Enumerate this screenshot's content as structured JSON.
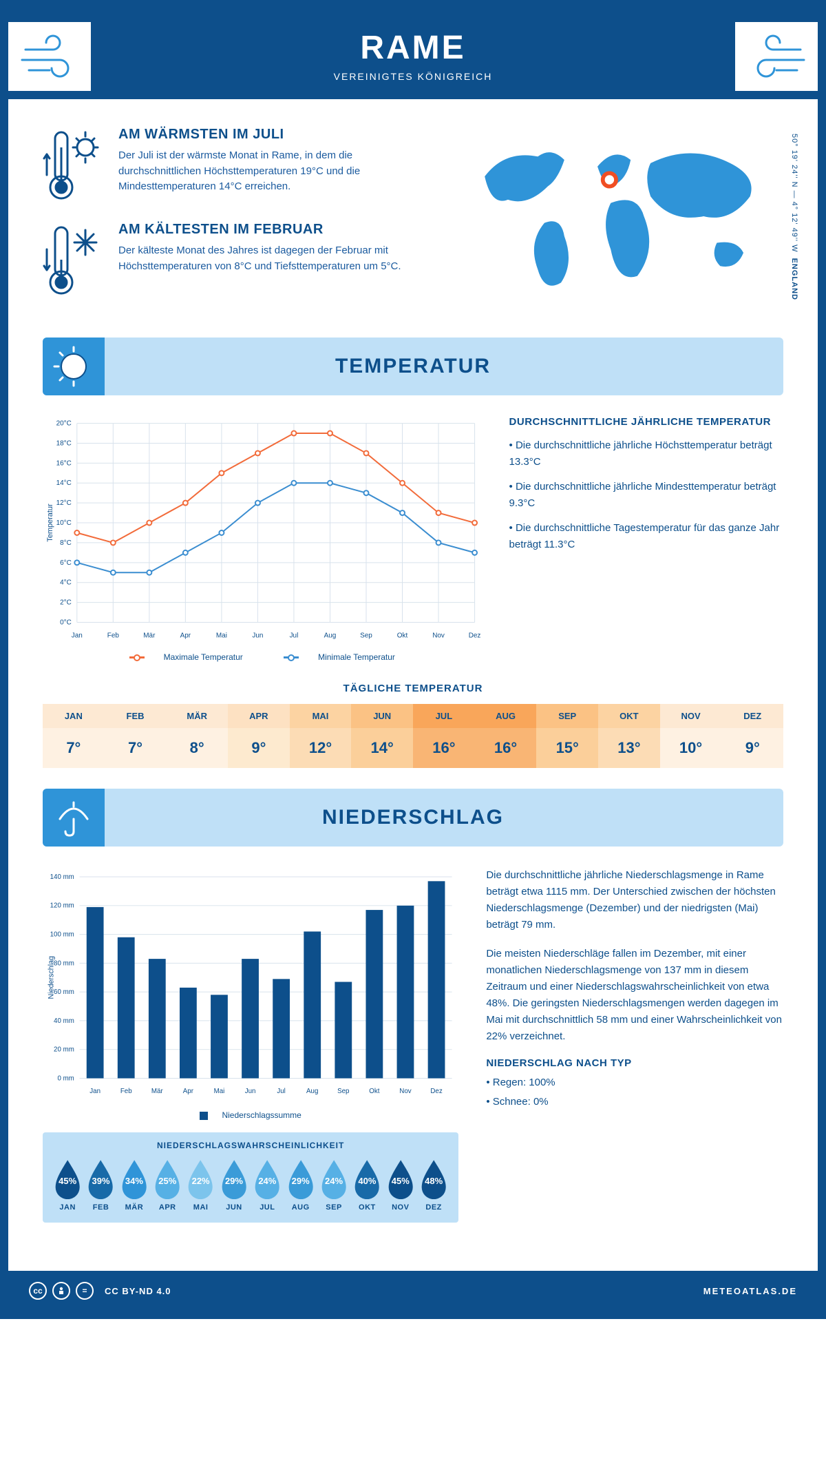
{
  "header": {
    "title": "RAME",
    "subtitle": "VEREINIGTES KÖNIGREICH"
  },
  "colors": {
    "primary": "#0d4f8b",
    "light_blue": "#bfe0f7",
    "mid_blue": "#2f94d8",
    "accent_blue": "#1a5a9e",
    "max_line": "#f26b3a",
    "min_line": "#3a8dd0",
    "grid": "#d0d8e0"
  },
  "coords": {
    "line1": "50° 19' 24'' N — 4° 12' 49'' W",
    "line2": "ENGLAND"
  },
  "warmest": {
    "title": "AM WÄRMSTEN IM JULI",
    "text": "Der Juli ist der wärmste Monat in Rame, in dem die durchschnittlichen Höchsttemperaturen 19°C und die Mindesttemperaturen 14°C erreichen."
  },
  "coldest": {
    "title": "AM KÄLTESTEN IM FEBRUAR",
    "text": "Der kälteste Monat des Jahres ist dagegen der Februar mit Höchsttemperaturen von 8°C und Tiefsttemperaturen um 5°C."
  },
  "temperature": {
    "section_title": "TEMPERATUR",
    "chart": {
      "type": "line",
      "months": [
        "Jan",
        "Feb",
        "Mär",
        "Apr",
        "Mai",
        "Jun",
        "Jul",
        "Aug",
        "Sep",
        "Okt",
        "Nov",
        "Dez"
      ],
      "max_values": [
        9,
        8,
        10,
        12,
        15,
        17,
        19,
        19,
        17,
        14,
        11,
        10
      ],
      "min_values": [
        6,
        5,
        5,
        7,
        9,
        12,
        14,
        14,
        13,
        11,
        8,
        7
      ],
      "ylim": [
        0,
        20
      ],
      "ytick_step": 2,
      "y_label": "Temperatur",
      "legend_max": "Maximale Temperatur",
      "legend_min": "Minimale Temperatur",
      "max_color": "#f26b3a",
      "min_color": "#3a8dd0",
      "grid_color": "#d8e2ec",
      "line_width": 2,
      "marker": "circle-open"
    },
    "side": {
      "title": "DURCHSCHNITTLICHE JÄHRLICHE TEMPERATUR",
      "b1": "• Die durchschnittliche jährliche Höchsttemperatur beträgt 13.3°C",
      "b2": "• Die durchschnittliche jährliche Mindesttemperatur beträgt 9.3°C",
      "b3": "• Die durchschnittliche Tagestemperatur für das ganze Jahr beträgt 11.3°C"
    },
    "daily": {
      "title": "TÄGLICHE TEMPERATUR",
      "months": [
        "JAN",
        "FEB",
        "MÄR",
        "APR",
        "MAI",
        "JUN",
        "JUL",
        "AUG",
        "SEP",
        "OKT",
        "NOV",
        "DEZ"
      ],
      "values": [
        "7°",
        "7°",
        "8°",
        "9°",
        "12°",
        "14°",
        "16°",
        "16°",
        "15°",
        "13°",
        "10°",
        "9°"
      ],
      "head_colors": [
        "#fde9d3",
        "#fde9d3",
        "#fde9d3",
        "#fde1c2",
        "#fcd3a2",
        "#fbc284",
        "#f9a65a",
        "#f9a65a",
        "#fbc284",
        "#fcd3a2",
        "#fde9d3",
        "#fde9d3"
      ],
      "cell_colors": [
        "#fef1e2",
        "#fef1e2",
        "#fef1e2",
        "#fdeacf",
        "#fcdcb5",
        "#fbcf9a",
        "#f9b574",
        "#f9b574",
        "#fbcf9a",
        "#fcdcb5",
        "#fef1e2",
        "#fef1e2"
      ]
    }
  },
  "precipitation": {
    "section_title": "NIEDERSCHLAG",
    "chart": {
      "type": "bar",
      "months": [
        "Jan",
        "Feb",
        "Mär",
        "Apr",
        "Mai",
        "Jun",
        "Jul",
        "Aug",
        "Sep",
        "Okt",
        "Nov",
        "Dez"
      ],
      "values": [
        119,
        98,
        83,
        63,
        58,
        83,
        69,
        102,
        67,
        117,
        120,
        137
      ],
      "ylim": [
        0,
        140
      ],
      "ytick_step": 20,
      "y_label": "Niederschlag",
      "bar_color": "#0d4f8b",
      "grid_color": "#d8e2ec",
      "legend": "Niederschlagssumme",
      "bar_width": 0.55
    },
    "text": {
      "p1": "Die durchschnittliche jährliche Niederschlagsmenge in Rame beträgt etwa 1115 mm. Der Unterschied zwischen der höchsten Niederschlagsmenge (Dezember) und der niedrigsten (Mai) beträgt 79 mm.",
      "p2": "Die meisten Niederschläge fallen im Dezember, mit einer monatlichen Niederschlagsmenge von 137 mm in diesem Zeitraum und einer Niederschlagswahrscheinlichkeit von etwa 48%. Die geringsten Niederschlagsmengen werden dagegen im Mai mit durchschnittlich 58 mm und einer Wahrscheinlichkeit von 22% verzeichnet.",
      "type_title": "NIEDERSCHLAG NACH TYP",
      "type1": "• Regen: 100%",
      "type2": "• Schnee: 0%"
    },
    "probability": {
      "title": "NIEDERSCHLAGSWAHRSCHEINLICHKEIT",
      "months": [
        "JAN",
        "FEB",
        "MÄR",
        "APR",
        "MAI",
        "JUN",
        "JUL",
        "AUG",
        "SEP",
        "OKT",
        "NOV",
        "DEZ"
      ],
      "values": [
        "45%",
        "39%",
        "34%",
        "25%",
        "22%",
        "29%",
        "24%",
        "29%",
        "24%",
        "40%",
        "45%",
        "48%"
      ],
      "colors": [
        "#0d4f8b",
        "#186aa8",
        "#2f94d8",
        "#56b0e5",
        "#7cc4ec",
        "#3a9bd8",
        "#56b0e5",
        "#3a9bd8",
        "#56b0e5",
        "#186aa8",
        "#0d4f8b",
        "#0d4f8b"
      ]
    }
  },
  "footer": {
    "license": "CC BY-ND 4.0",
    "site": "METEOATLAS.DE"
  }
}
